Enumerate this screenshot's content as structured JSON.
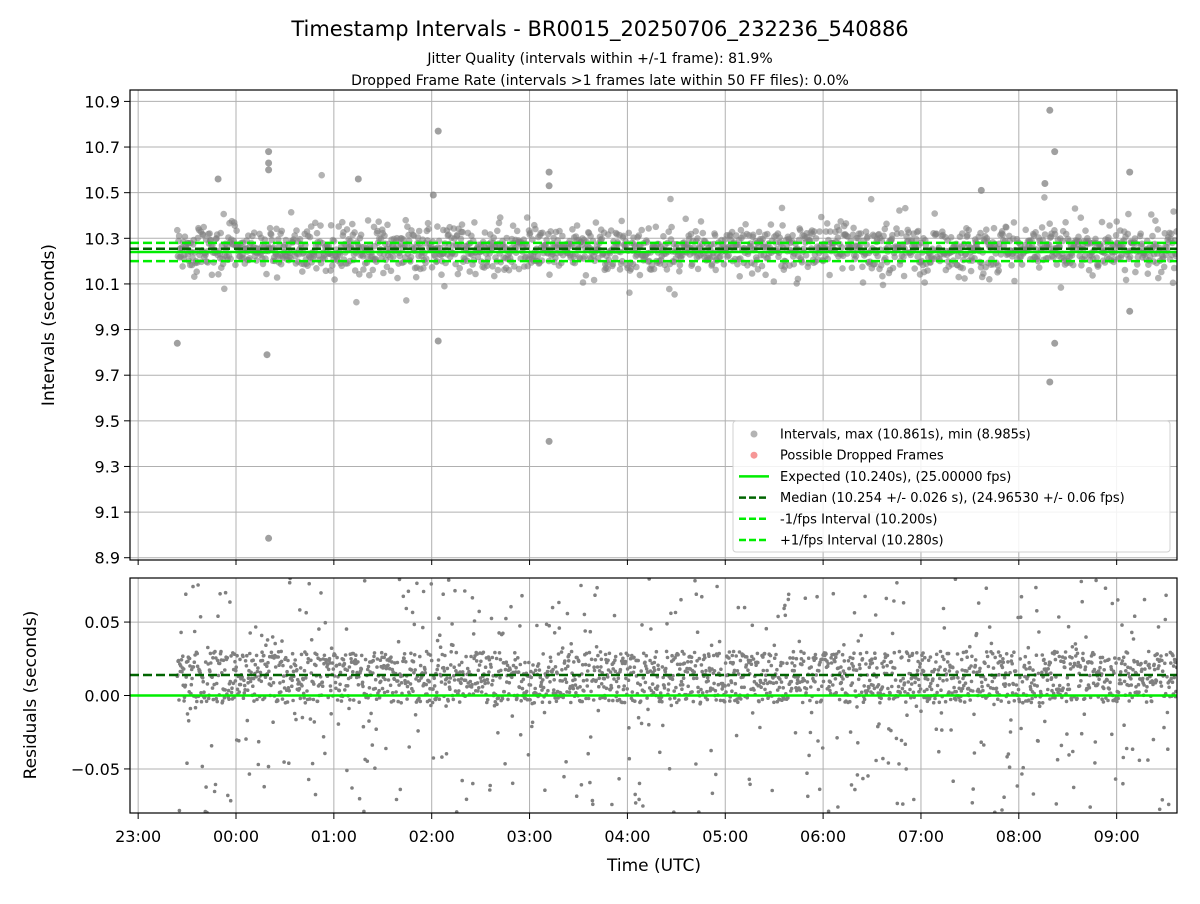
{
  "chart_data": [
    {
      "type": "scatter",
      "title": "Timestamp Intervals - BR0015_20250706_232236_540886",
      "subtitle_lines": [
        "Jitter Quality (intervals within +/-1 frame): 81.9%",
        "Dropped Frame Rate (intervals >1 frames late within 50 FF files): 0.0%"
      ],
      "xlabel": "",
      "ylabel": "Intervals (seconds)",
      "x_axis": "time (UTC)",
      "xlim": [
        "22:55",
        "09:37"
      ],
      "ylim": [
        8.89,
        10.95
      ],
      "x_ticks": [
        "23:00",
        "00:00",
        "01:00",
        "02:00",
        "03:00",
        "04:00",
        "05:00",
        "06:00",
        "07:00",
        "08:00",
        "09:00"
      ],
      "y_ticks": [
        "8.9",
        "9.1",
        "9.3",
        "9.5",
        "9.7",
        "9.9",
        "10.1",
        "10.3",
        "10.5",
        "10.7",
        "10.9"
      ],
      "grid": true,
      "legend_position": "lower-right",
      "series": [
        {
          "name": "Intervals, max (10.861s), min (8.985s)",
          "kind": "scatter",
          "color": "#808080",
          "x_range": [
            "23:24",
            "09:37"
          ],
          "median": 10.254,
          "notable_points": [
            {
              "x": "23:24",
              "y": 9.84
            },
            {
              "x": "00:19",
              "y": 9.79
            },
            {
              "x": "00:20",
              "y": 8.985
            },
            {
              "x": "00:20",
              "y": 10.68
            },
            {
              "x": "00:20",
              "y": 10.63
            },
            {
              "x": "00:20",
              "y": 10.6
            },
            {
              "x": "23:49",
              "y": 10.56
            },
            {
              "x": "01:15",
              "y": 10.56
            },
            {
              "x": "02:01",
              "y": 10.49
            },
            {
              "x": "02:04",
              "y": 10.77
            },
            {
              "x": "02:04",
              "y": 9.85
            },
            {
              "x": "03:12",
              "y": 9.41
            },
            {
              "x": "03:12",
              "y": 10.59
            },
            {
              "x": "03:12",
              "y": 10.53
            },
            {
              "x": "07:37",
              "y": 10.51
            },
            {
              "x": "08:16",
              "y": 10.54
            },
            {
              "x": "08:19",
              "y": 10.861
            },
            {
              "x": "08:22",
              "y": 10.68
            },
            {
              "x": "08:22",
              "y": 9.84
            },
            {
              "x": "08:19",
              "y": 9.67
            },
            {
              "x": "09:08",
              "y": 10.59
            },
            {
              "x": "09:08",
              "y": 9.98
            }
          ]
        },
        {
          "name": "Possible Dropped Frames",
          "kind": "scatter",
          "color": "#f05050",
          "points": []
        },
        {
          "name": "Expected (10.240s), (25.00000 fps)",
          "kind": "hline",
          "y": 10.24,
          "color": "#00ee00",
          "style": "solid"
        },
        {
          "name": "Median (10.254 +/- 0.026 s), (24.96530 +/- 0.06 fps)",
          "kind": "hline",
          "y": 10.254,
          "color": "#006400",
          "style": "dashed"
        },
        {
          "name": "-1/fps Interval (10.200s)",
          "kind": "hline",
          "y": 10.2,
          "color": "#00ee00",
          "style": "dashed"
        },
        {
          "name": "+1/fps Interval (10.280s)",
          "kind": "hline",
          "y": 10.28,
          "color": "#00ee00",
          "style": "dashed"
        }
      ]
    },
    {
      "type": "scatter",
      "title": "",
      "xlabel": "Time (UTC)",
      "ylabel": "Residuals (seconds)",
      "xlim": [
        "22:55",
        "09:37"
      ],
      "ylim": [
        -0.08,
        0.08
      ],
      "x_ticks": [
        "23:00",
        "00:00",
        "01:00",
        "02:00",
        "03:00",
        "04:00",
        "05:00",
        "06:00",
        "07:00",
        "08:00",
        "09:00"
      ],
      "y_ticks": [
        "−0.05",
        "0.00",
        "0.05"
      ],
      "y_tick_values": [
        -0.05,
        0.0,
        0.05
      ],
      "grid": true,
      "series": [
        {
          "kind": "scatter",
          "color": "#808080",
          "x_range": [
            "23:24",
            "09:37"
          ],
          "typical_band": [
            -0.005,
            0.03
          ]
        },
        {
          "kind": "hline",
          "y": 0.0,
          "color": "#00ee00",
          "style": "solid"
        },
        {
          "kind": "hline",
          "y": 0.014,
          "color": "#006400",
          "style": "dashed"
        }
      ]
    }
  ]
}
